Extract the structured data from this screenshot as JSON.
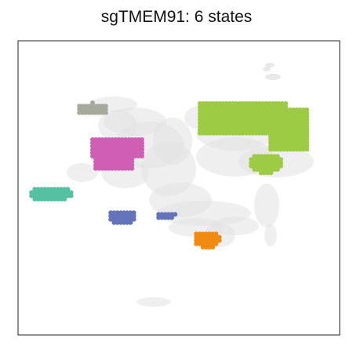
{
  "chart_data": {
    "type": "scatter",
    "title": "sgTMEM91: 6 states",
    "xlabel": "",
    "ylabel": "",
    "axes_ticks": false,
    "grid": false,
    "legend": "none",
    "background_color": "#e2e2e2",
    "series": [
      {
        "color": "#9ecb45",
        "regions": [
          {
            "shape": "rect",
            "x": [
              255,
              365
            ],
            "y": [
              132,
              172
            ]
          },
          {
            "shape": "rect",
            "x": [
              345,
              392
            ],
            "y": [
              140,
              192
            ]
          },
          {
            "shape": "ellipse",
            "cx": 338,
            "cy": 208,
            "rx": 22,
            "ry": 13
          }
        ]
      },
      {
        "color": "#d05fb4",
        "regions": [
          {
            "shape": "rect",
            "x": [
              118,
              182
            ],
            "y": [
              178,
              200
            ]
          },
          {
            "shape": "rect",
            "x": [
              122,
              170
            ],
            "y": [
              198,
              215
            ]
          }
        ]
      },
      {
        "color": "#53c1a2",
        "regions": [
          {
            "shape": "ellipse",
            "cx": 64,
            "cy": 247,
            "rx": 28,
            "ry": 10
          }
        ]
      },
      {
        "color": "#a6aa9c",
        "regions": [
          {
            "shape": "ellipse",
            "cx": 118,
            "cy": 139,
            "rx": 21,
            "ry": 8
          }
        ]
      },
      {
        "color": "#6474ba",
        "regions": [
          {
            "shape": "ellipse",
            "cx": 156,
            "cy": 277,
            "rx": 19,
            "ry": 10
          },
          {
            "shape": "ellipse",
            "cx": 211,
            "cy": 274,
            "rx": 13,
            "ry": 5
          }
        ]
      },
      {
        "color": "#f08a12",
        "regions": [
          {
            "shape": "ellipse",
            "cx": 264,
            "cy": 305,
            "rx": 18,
            "ry": 11
          }
        ]
      }
    ]
  }
}
